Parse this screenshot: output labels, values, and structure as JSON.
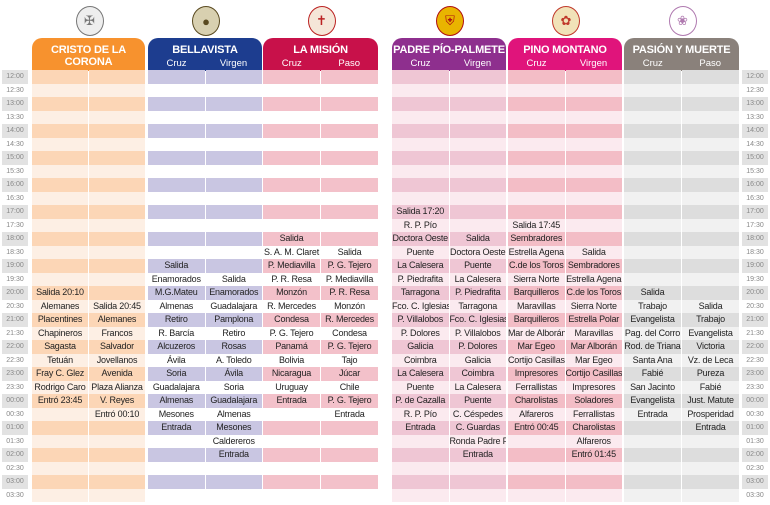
{
  "times": [
    "12:00",
    "12:30",
    "13:00",
    "13:30",
    "14:00",
    "14:30",
    "15:00",
    "15:30",
    "16:00",
    "16:30",
    "17:00",
    "17:30",
    "18:00",
    "18:30",
    "19:00",
    "19:30",
    "20:00",
    "20:30",
    "21:00",
    "21:30",
    "22:00",
    "22:30",
    "23:00",
    "23:30",
    "00:00",
    "00:30",
    "01:00",
    "01:30",
    "02:00",
    "02:30",
    "03:00",
    "03:30"
  ],
  "hermandades": [
    {
      "name": "CRISTO DE LA CORONA",
      "cols": [
        "Cruz",
        "Paso"
      ],
      "color": "#f7922e",
      "on": "#fcd6b6",
      "off": "#fdefe4",
      "logo_icon": "crest-icon",
      "items": [
        [
          "20:00",
          "Salida 20:10",
          ""
        ],
        [
          "20:30",
          "Alemanes",
          "Salida 20:45"
        ],
        [
          "21:00",
          "Placentines",
          "Alemanes"
        ],
        [
          "21:30",
          "Chapineros",
          "Francos"
        ],
        [
          "22:00",
          "Sagasta",
          "Salvador"
        ],
        [
          "22:30",
          "Tetuán",
          "Jovellanos"
        ],
        [
          "23:00",
          "Fray C. Glez",
          "Avenida"
        ],
        [
          "23:30",
          "Rodrigo Caro",
          "Plaza Alianza"
        ],
        [
          "00:00",
          "Entró 23:45",
          "V. Reyes"
        ],
        [
          "00:30",
          "",
          "Entró 00:10"
        ]
      ]
    },
    {
      "name": "BELLAVISTA",
      "cols": [
        "Cruz",
        "Virgen"
      ],
      "color": "#1d3d8f",
      "on": "#c9c6e2",
      "off": "#ffffff",
      "logo_icon": "medallion-icon",
      "items": [
        [
          "19:00",
          "Salida",
          ""
        ],
        [
          "19:30",
          "Enamorados",
          "Salida"
        ],
        [
          "20:00",
          "M.G.Mateu",
          "Enamorados"
        ],
        [
          "20:30",
          "Almenas",
          "Guadalajara"
        ],
        [
          "21:00",
          "Retiro",
          "Pamplona"
        ],
        [
          "21:30",
          "R. Barcía",
          "Retiro"
        ],
        [
          "22:00",
          "Alcuzeros",
          "Rosas"
        ],
        [
          "22:30",
          "Ávila",
          "A. Toledo"
        ],
        [
          "23:00",
          "Soria",
          "Ávila"
        ],
        [
          "23:30",
          "Guadalajara",
          "Soria"
        ],
        [
          "00:00",
          "Almenas",
          "Guadalajara"
        ],
        [
          "00:30",
          "Mesones",
          "Almenas"
        ],
        [
          "01:00",
          "Entrada",
          "Mesones"
        ],
        [
          "01:30",
          "",
          "Caldereros"
        ],
        [
          "02:00",
          "",
          "Entrada"
        ]
      ]
    },
    {
      "name": "LA MISIÓN",
      "cols": [
        "Cruz",
        "Paso"
      ],
      "color": "#c8114a",
      "on": "#f3c1ca",
      "off": "#ffffff",
      "logo_icon": "cross-icon",
      "items": [
        [
          "18:00",
          "Salida",
          ""
        ],
        [
          "18:30",
          "S. A. M. Claret",
          "Salida"
        ],
        [
          "19:00",
          "P. Mediavilla",
          "P. G. Tejero"
        ],
        [
          "19:30",
          "P. R. Resa",
          "P. Mediavilla"
        ],
        [
          "20:00",
          "Monzón",
          "P. R. Resa"
        ],
        [
          "20:30",
          "R. Mercedes",
          "Monzón"
        ],
        [
          "21:00",
          "Condesa",
          "R. Mercedes"
        ],
        [
          "21:30",
          "P. G. Tejero",
          "Condesa"
        ],
        [
          "22:00",
          "Panamá",
          "P. G. Tejero"
        ],
        [
          "22:30",
          "Bolivia",
          "Tajo"
        ],
        [
          "23:00",
          "Nicaragua",
          "Júcar"
        ],
        [
          "23:30",
          "Uruguay",
          "Chile"
        ],
        [
          "00:00",
          "Entrada",
          "P. G. Tejero"
        ],
        [
          "00:30",
          "",
          "Entrada"
        ]
      ]
    },
    {
      "name": "PADRE PÍO-PALMETE",
      "cols": [
        "Cruz",
        "Virgen"
      ],
      "color": "#8e2f8e",
      "on": "#efc6d4",
      "off": "#fbeaef",
      "logo_icon": "shield-icon",
      "items": [
        [
          "17:00",
          "Salida 17:20",
          ""
        ],
        [
          "17:30",
          "R. P. Pío",
          ""
        ],
        [
          "18:00",
          "Doctora Oeste",
          "Salida"
        ],
        [
          "18:30",
          "Puente",
          "Doctora Oeste"
        ],
        [
          "19:00",
          "La Calesera",
          "Puente"
        ],
        [
          "19:30",
          "P. Piedrafita",
          "La Calesera"
        ],
        [
          "20:00",
          "Tarragona",
          "P. Piedrafita"
        ],
        [
          "20:30",
          "Fco. C. Iglesias",
          "Tarragona"
        ],
        [
          "21:00",
          "P. Villalobos",
          "Fco. C. Iglesias"
        ],
        [
          "21:30",
          "P. Dolores",
          "P. Villalobos"
        ],
        [
          "22:00",
          "Galicia",
          "P. Dolores"
        ],
        [
          "22:30",
          "Coimbra",
          "Galicia"
        ],
        [
          "23:00",
          "La Calesera",
          "Coimbra"
        ],
        [
          "23:30",
          "Puente",
          "La Calesera"
        ],
        [
          "00:00",
          "P. de Cazalla",
          "Puente"
        ],
        [
          "00:30",
          "R. P. Pío",
          "C. Céspedes"
        ],
        [
          "01:00",
          "Entrada",
          "C. Guardas"
        ],
        [
          "01:30",
          "",
          "Ronda Padre Pío"
        ],
        [
          "02:00",
          "",
          "Entrada"
        ]
      ]
    },
    {
      "name": "PINO MONTANO",
      "cols": [
        "Cruz",
        "Virgen"
      ],
      "color": "#e0147b",
      "on": "#f3bdc6",
      "off": "#fbeaef",
      "logo_icon": "emblem-icon",
      "items": [
        [
          "17:30",
          "Salida 17:45",
          ""
        ],
        [
          "18:00",
          "Sembradores",
          ""
        ],
        [
          "18:30",
          "Estrella Agena",
          "Salida"
        ],
        [
          "19:00",
          "C.de los Toros",
          "Sembradores"
        ],
        [
          "19:30",
          "Sierra Norte",
          "Estrella Agena"
        ],
        [
          "20:00",
          "Barquilleros",
          "C.de los Toros"
        ],
        [
          "20:30",
          "Maravillas",
          "Sierra Norte"
        ],
        [
          "21:00",
          "Barquilleros",
          "Estrella Polar"
        ],
        [
          "21:30",
          "Mar de Alborán",
          "Maravillas"
        ],
        [
          "22:00",
          "Mar Egeo",
          "Mar Alborán"
        ],
        [
          "22:30",
          "Cortijo Casillas",
          "Mar Egeo"
        ],
        [
          "23:00",
          "Impresores",
          "Cortijo Casillas"
        ],
        [
          "23:30",
          "Ferrallistas",
          "Impresores"
        ],
        [
          "00:00",
          "Charolistas",
          "Soladores"
        ],
        [
          "00:30",
          "Alfareros",
          "Ferrallistas"
        ],
        [
          "01:00",
          "Entró 00:45",
          "Charolistas"
        ],
        [
          "01:30",
          "",
          "Alfareros"
        ],
        [
          "02:00",
          "",
          "Entró 01:45"
        ]
      ]
    },
    {
      "name": "PASIÓN Y MUERTE",
      "cols": [
        "Cruz",
        "Paso"
      ],
      "color": "#8a817b",
      "on": "#dddddd",
      "off": "#f1f1f1",
      "logo_icon": "seal-icon",
      "items": [
        [
          "20:00",
          "Salida",
          ""
        ],
        [
          "20:30",
          "Trabajo",
          "Salida"
        ],
        [
          "21:00",
          "Evangelista",
          "Trabajo"
        ],
        [
          "21:30",
          "Pag. del Corro",
          "Evangelista"
        ],
        [
          "22:00",
          "Rod. de Triana",
          "Victoria"
        ],
        [
          "22:30",
          "Santa Ana",
          "Vz. de Leca"
        ],
        [
          "23:00",
          "Fabié",
          "Pureza"
        ],
        [
          "23:30",
          "San Jacinto",
          "Fabié"
        ],
        [
          "00:00",
          "Evangelista",
          "Just. Matute"
        ],
        [
          "00:30",
          "Entrada",
          "Prosperidad"
        ],
        [
          "01:00",
          "",
          "Entrada"
        ]
      ]
    }
  ]
}
